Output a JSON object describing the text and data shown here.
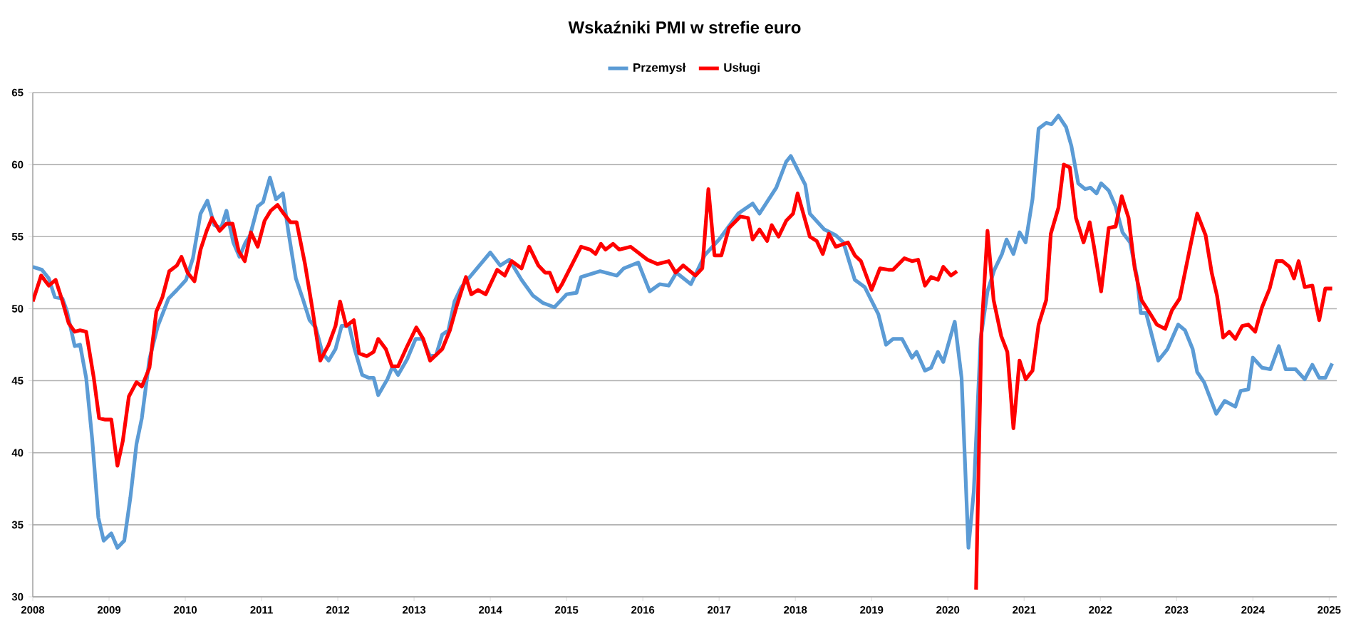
{
  "chart_data": {
    "type": "line",
    "title": "Wskaźniki PMI w strefie euro",
    "xlim": [
      2008,
      2025.1
    ],
    "xticks": [
      2008,
      2009,
      2010,
      2011,
      2012,
      2013,
      2014,
      2015,
      2016,
      2017,
      2018,
      2019,
      2020,
      2021,
      2022,
      2023,
      2024,
      2025
    ],
    "ylim": [
      30,
      65
    ],
    "yticks": [
      30,
      35,
      40,
      45,
      50,
      55,
      60,
      65
    ],
    "grid": "y",
    "legend": "top",
    "marker": "none",
    "line_style": "solid",
    "series": [
      {
        "name": "Przemysł",
        "color": "#5b9bd5",
        "x": [
          2008.0,
          2008.12,
          2008.21,
          2008.29,
          2008.39,
          2008.45,
          2008.55,
          2008.62,
          2008.7,
          2008.78,
          2008.86,
          2008.93,
          2009.03,
          2009.11,
          2009.2,
          2009.28,
          2009.36,
          2009.43,
          2009.53,
          2009.64,
          2009.78,
          2009.89,
          2010.01,
          2010.1,
          2010.2,
          2010.29,
          2010.38,
          2010.47,
          2010.54,
          2010.63,
          2010.71,
          2010.79,
          2010.85,
          2010.95,
          2011.02,
          2011.11,
          2011.19,
          2011.28,
          2011.35,
          2011.45,
          2011.54,
          2011.63,
          2011.71,
          2011.8,
          2011.88,
          2011.97,
          2012.05,
          2012.15,
          2012.22,
          2012.32,
          2012.41,
          2012.47,
          2012.53,
          2012.65,
          2012.72,
          2012.79,
          2012.91,
          2013.02,
          2013.11,
          2013.21,
          2013.29,
          2013.37,
          2013.45,
          2013.53,
          2013.62,
          2014.0,
          2014.13,
          2014.25,
          2014.41,
          2014.56,
          2014.69,
          2014.84,
          2015.0,
          2015.13,
          2015.19,
          2015.44,
          2015.66,
          2015.75,
          2015.94,
          2016.09,
          2016.22,
          2016.34,
          2016.44,
          2016.63,
          2016.81,
          2017.0,
          2017.25,
          2017.44,
          2017.53,
          2017.75,
          2017.88,
          2017.94,
          2018.13,
          2018.19,
          2018.38,
          2018.53,
          2018.63,
          2018.78,
          2018.91,
          2019.09,
          2019.19,
          2019.28,
          2019.4,
          2019.53,
          2019.59,
          2019.7,
          2019.78,
          2019.87,
          2019.94,
          2020.09,
          2020.18,
          2020.27,
          2020.34,
          2020.43,
          2020.52,
          2020.61,
          2020.71,
          2020.77,
          2020.86,
          2020.94,
          2021.02,
          2021.11,
          2021.19,
          2021.29,
          2021.36,
          2021.45,
          2021.55,
          2021.62,
          2021.71,
          2021.8,
          2021.87,
          2021.95,
          2022.01,
          2022.11,
          2022.2,
          2022.29,
          2022.39,
          2022.48,
          2022.53,
          2022.6,
          2022.76,
          2022.88,
          2023.02,
          2023.11,
          2023.21,
          2023.27,
          2023.36,
          2023.44,
          2023.52,
          2023.63,
          2023.77,
          2023.84,
          2023.94,
          2024.0,
          2024.12,
          2024.23,
          2024.34,
          2024.43,
          2024.56,
          2024.68,
          2024.78,
          2024.87,
          2024.95,
          2025.04
        ],
        "values": [
          52.9,
          52.7,
          52.1,
          50.8,
          50.7,
          49.8,
          47.4,
          47.5,
          45.2,
          40.9,
          35.5,
          33.9,
          34.4,
          33.4,
          33.9,
          36.9,
          40.6,
          42.4,
          46.5,
          48.8,
          50.7,
          51.3,
          52.0,
          53.5,
          56.6,
          57.5,
          55.8,
          55.6,
          56.8,
          54.6,
          53.6,
          54.6,
          55.1,
          57.1,
          57.4,
          59.1,
          57.6,
          58.0,
          55.4,
          52.1,
          50.7,
          49.2,
          48.7,
          46.9,
          46.4,
          47.2,
          48.8,
          48.8,
          47.2,
          45.4,
          45.2,
          45.2,
          44.0,
          45.1,
          46.0,
          45.4,
          46.5,
          47.9,
          47.9,
          46.7,
          46.8,
          48.2,
          48.5,
          50.5,
          51.5,
          53.9,
          53.0,
          53.4,
          52.0,
          50.9,
          50.4,
          50.1,
          51.0,
          51.1,
          52.2,
          52.6,
          52.3,
          52.8,
          53.2,
          51.2,
          51.7,
          51.6,
          52.5,
          51.7,
          53.7,
          54.8,
          56.6,
          57.3,
          56.6,
          58.4,
          60.2,
          60.6,
          58.6,
          56.6,
          55.5,
          55.1,
          54.6,
          52.0,
          51.5,
          49.6,
          47.5,
          47.9,
          47.9,
          46.6,
          47.0,
          45.7,
          45.9,
          47.0,
          46.3,
          49.1,
          45.2,
          33.4,
          37.3,
          47.9,
          51.2,
          52.7,
          53.8,
          54.8,
          53.8,
          55.3,
          54.6,
          57.6,
          62.5,
          62.9,
          62.8,
          63.4,
          62.6,
          61.3,
          58.7,
          58.3,
          58.4,
          58.0,
          58.7,
          58.2,
          57.1,
          55.3,
          54.6,
          52.2,
          49.7,
          49.7,
          46.4,
          47.2,
          48.9,
          48.5,
          47.2,
          45.6,
          44.9,
          43.8,
          42.7,
          43.6,
          43.2,
          44.3,
          44.4,
          46.6,
          45.9,
          45.8,
          47.4,
          45.8,
          45.8,
          45.1,
          46.1,
          45.2,
          45.2,
          46.2
        ]
      },
      {
        "name": "Usługi",
        "color": "#ff0000",
        "x": [
          2008.0,
          2008.11,
          2008.21,
          2008.3,
          2008.39,
          2008.47,
          2008.55,
          2008.62,
          2008.7,
          2008.8,
          2008.87,
          2008.95,
          2009.03,
          2009.11,
          2009.18,
          2009.26,
          2009.36,
          2009.43,
          2009.53,
          2009.62,
          2009.7,
          2009.79,
          2009.89,
          2009.95,
          2010.03,
          2010.12,
          2010.2,
          2010.28,
          2010.35,
          2010.45,
          2010.54,
          2010.62,
          2010.7,
          2010.78,
          2010.86,
          2010.95,
          2011.04,
          2011.12,
          2011.21,
          2011.29,
          2011.38,
          2011.46,
          2011.57,
          2011.66,
          2011.77,
          2011.88,
          2011.97,
          2012.03,
          2012.11,
          2012.21,
          2012.28,
          2012.38,
          2012.47,
          2012.53,
          2012.63,
          2012.71,
          2012.79,
          2012.91,
          2013.03,
          2013.12,
          2013.21,
          2013.37,
          2013.47,
          2013.56,
          2013.68,
          2013.75,
          2013.84,
          2013.94,
          2014.09,
          2014.19,
          2014.28,
          2014.41,
          2014.51,
          2014.63,
          2014.72,
          2014.78,
          2014.88,
          2014.94,
          2015.19,
          2015.31,
          2015.38,
          2015.45,
          2015.51,
          2015.61,
          2015.69,
          2015.84,
          2016.06,
          2016.19,
          2016.34,
          2016.43,
          2016.53,
          2016.69,
          2016.78,
          2016.86,
          2016.94,
          2017.03,
          2017.13,
          2017.28,
          2017.38,
          2017.44,
          2017.53,
          2017.63,
          2017.69,
          2017.78,
          2017.88,
          2017.97,
          2018.03,
          2018.19,
          2018.28,
          2018.36,
          2018.44,
          2018.53,
          2018.69,
          2018.78,
          2018.86,
          2019.0,
          2019.11,
          2019.22,
          2019.28,
          2019.43,
          2019.53,
          2019.61,
          2019.7,
          2019.78,
          2019.87,
          2019.94,
          2020.04,
          2020.12,
          2020.2,
          2020.28,
          2020.37,
          2020.44,
          2020.52,
          2020.6,
          2020.7,
          2020.78,
          2020.86,
          2020.94,
          2021.02,
          2021.11,
          2021.19,
          2021.29,
          2021.35,
          2021.45,
          2021.52,
          2021.6,
          2021.68,
          2021.78,
          2021.86,
          2021.92,
          2022.01,
          2022.11,
          2022.2,
          2022.28,
          2022.37,
          2022.45,
          2022.54,
          2022.66,
          2022.74,
          2022.85,
          2022.94,
          2023.04,
          2023.19,
          2023.27,
          2023.38,
          2023.46,
          2023.53,
          2023.61,
          2023.69,
          2023.77,
          2023.86,
          2023.94,
          2024.03,
          2024.12,
          2024.22,
          2024.31,
          2024.39,
          2024.48,
          2024.54,
          2024.6,
          2024.68,
          2024.78,
          2024.87,
          2024.95,
          2025.04
        ],
        "values": [
          50.5,
          52.3,
          51.6,
          52.0,
          50.5,
          49.0,
          48.4,
          48.5,
          48.4,
          45.2,
          42.4,
          42.3,
          42.3,
          39.1,
          40.8,
          43.9,
          44.9,
          44.6,
          45.9,
          49.8,
          50.8,
          52.6,
          53.0,
          53.6,
          52.5,
          51.9,
          54.1,
          55.4,
          56.3,
          55.4,
          55.9,
          55.9,
          54.0,
          53.3,
          55.3,
          54.3,
          56.1,
          56.8,
          57.2,
          56.6,
          56.0,
          56.0,
          53.1,
          50.2,
          46.4,
          47.5,
          48.8,
          50.5,
          48.8,
          49.2,
          46.9,
          46.7,
          47.0,
          47.9,
          47.2,
          46.0,
          46.0,
          47.4,
          48.7,
          47.9,
          46.4,
          47.2,
          48.5,
          50.2,
          52.2,
          51.0,
          51.3,
          51.0,
          52.7,
          52.3,
          53.3,
          52.8,
          54.3,
          53.0,
          52.5,
          52.5,
          51.2,
          51.7,
          54.3,
          54.1,
          53.8,
          54.5,
          54.1,
          54.5,
          54.1,
          54.3,
          53.4,
          53.1,
          53.3,
          52.5,
          53.0,
          52.3,
          52.8,
          58.3,
          53.7,
          53.7,
          55.6,
          56.4,
          56.3,
          54.8,
          55.5,
          54.7,
          55.8,
          55.0,
          56.1,
          56.6,
          58.0,
          55.0,
          54.7,
          53.8,
          55.2,
          54.3,
          54.6,
          53.7,
          53.3,
          51.3,
          52.8,
          52.7,
          52.7,
          53.5,
          53.3,
          53.4,
          51.6,
          52.2,
          52.0,
          52.9,
          52.3,
          52.6,
          null,
          null,
          30.5,
          48.3,
          55.4,
          50.6,
          48.1,
          47.0,
          41.7,
          46.4,
          45.1,
          45.7,
          48.9,
          50.6,
          55.2,
          57.0,
          60.0,
          59.8,
          56.3,
          54.6,
          56.0,
          54.2,
          51.2,
          55.6,
          55.7,
          57.8,
          56.3,
          52.8,
          50.6,
          49.6,
          48.9,
          48.6,
          49.9,
          50.7,
          54.6,
          56.6,
          55.1,
          52.5,
          50.9,
          48.0,
          48.4,
          47.9,
          48.8,
          48.9,
          48.4,
          50.1,
          51.4,
          53.3,
          53.3,
          52.9,
          52.1,
          53.3,
          51.5,
          51.6,
          49.2,
          51.4,
          51.4
        ]
      }
    ]
  }
}
